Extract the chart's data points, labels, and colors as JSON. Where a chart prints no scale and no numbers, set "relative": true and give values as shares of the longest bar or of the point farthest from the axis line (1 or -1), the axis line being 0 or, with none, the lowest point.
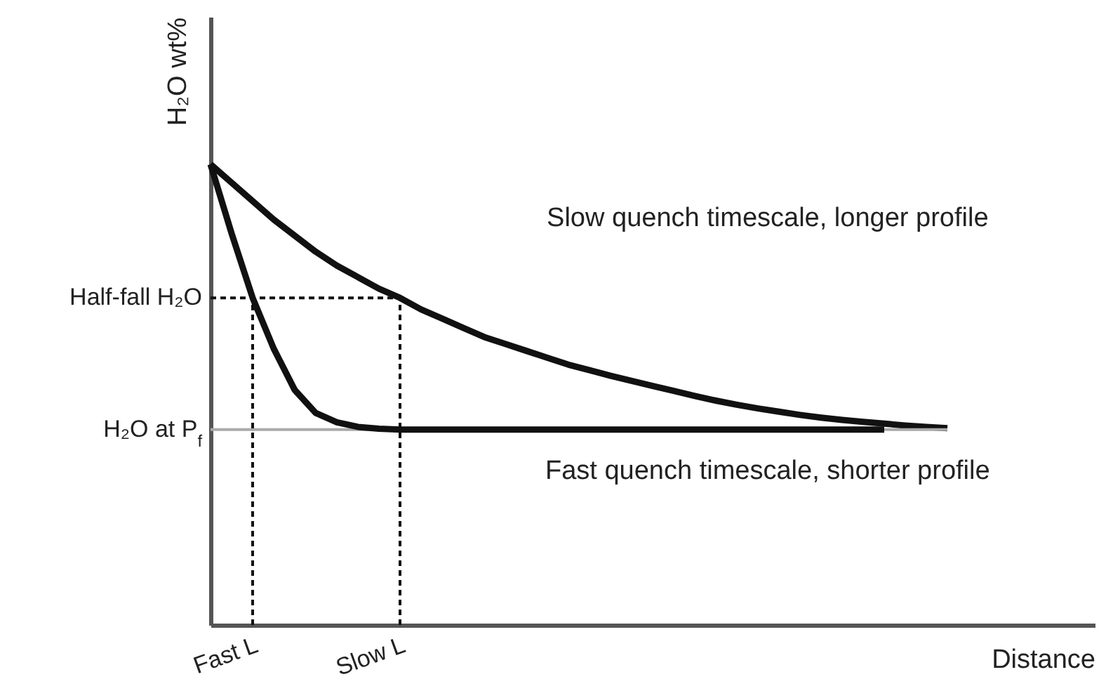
{
  "chart_data": {
    "type": "line",
    "relative": true,
    "ylabel": "H₂O wt%",
    "xlabel": "Distance",
    "line_style": "solid",
    "categories": [
      null,
      null,
      "Fast L",
      null,
      null,
      null,
      null,
      null,
      null,
      "Slow L",
      null,
      null,
      null,
      null,
      null,
      null,
      null,
      null,
      null,
      null,
      null,
      null,
      null,
      null,
      null,
      null,
      null,
      null,
      null,
      null,
      null,
      null,
      null,
      null,
      null,
      null,
      null,
      null,
      null,
      null,
      null,
      null,
      null
    ],
    "series": [
      {
        "color": "#111111",
        "values": [
          1.0,
          0.96,
          0.92,
          0.88,
          0.845,
          0.81,
          0.78,
          0.755,
          0.73,
          0.71,
          0.685,
          0.665,
          0.645,
          0.625,
          0.61,
          0.595,
          0.58,
          0.565,
          0.553,
          0.541,
          0.53,
          0.519,
          0.508,
          0.497,
          0.487,
          0.478,
          0.47,
          0.463,
          0.456,
          0.45,
          0.445,
          0.441,
          0.437,
          0.433,
          0.43,
          0.427,
          null,
          null,
          null,
          null,
          null,
          null,
          null
        ]
      },
      {
        "color": "#111111",
        "values": [
          1.0,
          0.85,
          0.71,
          0.6,
          0.51,
          0.46,
          0.44,
          0.43,
          0.426,
          0.424,
          0.424,
          0.424,
          0.424,
          0.424,
          0.424,
          0.424,
          0.424,
          0.424,
          0.424,
          0.424,
          0.424,
          0.424,
          0.424,
          0.424,
          0.424,
          0.424,
          0.424,
          0.424,
          0.424,
          0.424,
          0.424,
          0.424,
          0.424,
          null,
          null,
          null,
          null,
          null,
          null,
          null,
          null,
          null,
          null
        ]
      }
    ],
    "ref_lines": [
      {
        "axis": "y",
        "value": 0.424,
        "label": "H₂O at P$_{f}$",
        "color": "#aaaaaa"
      },
      {
        "axis": "y",
        "value": 0.71,
        "label": "Half-fall H₂O",
        "color": "#111111",
        "line_style": "dashed"
      },
      {
        "axis": "x",
        "value": "Fast L",
        "color": "#111111",
        "line_style": "dashed"
      },
      {
        "axis": "x",
        "value": "Slow L",
        "color": "#111111",
        "line_style": "dashed"
      }
    ],
    "annotations": [
      "Slow quench timescale, longer profile",
      "Fast quench timescale, shorter profile"
    ]
  }
}
